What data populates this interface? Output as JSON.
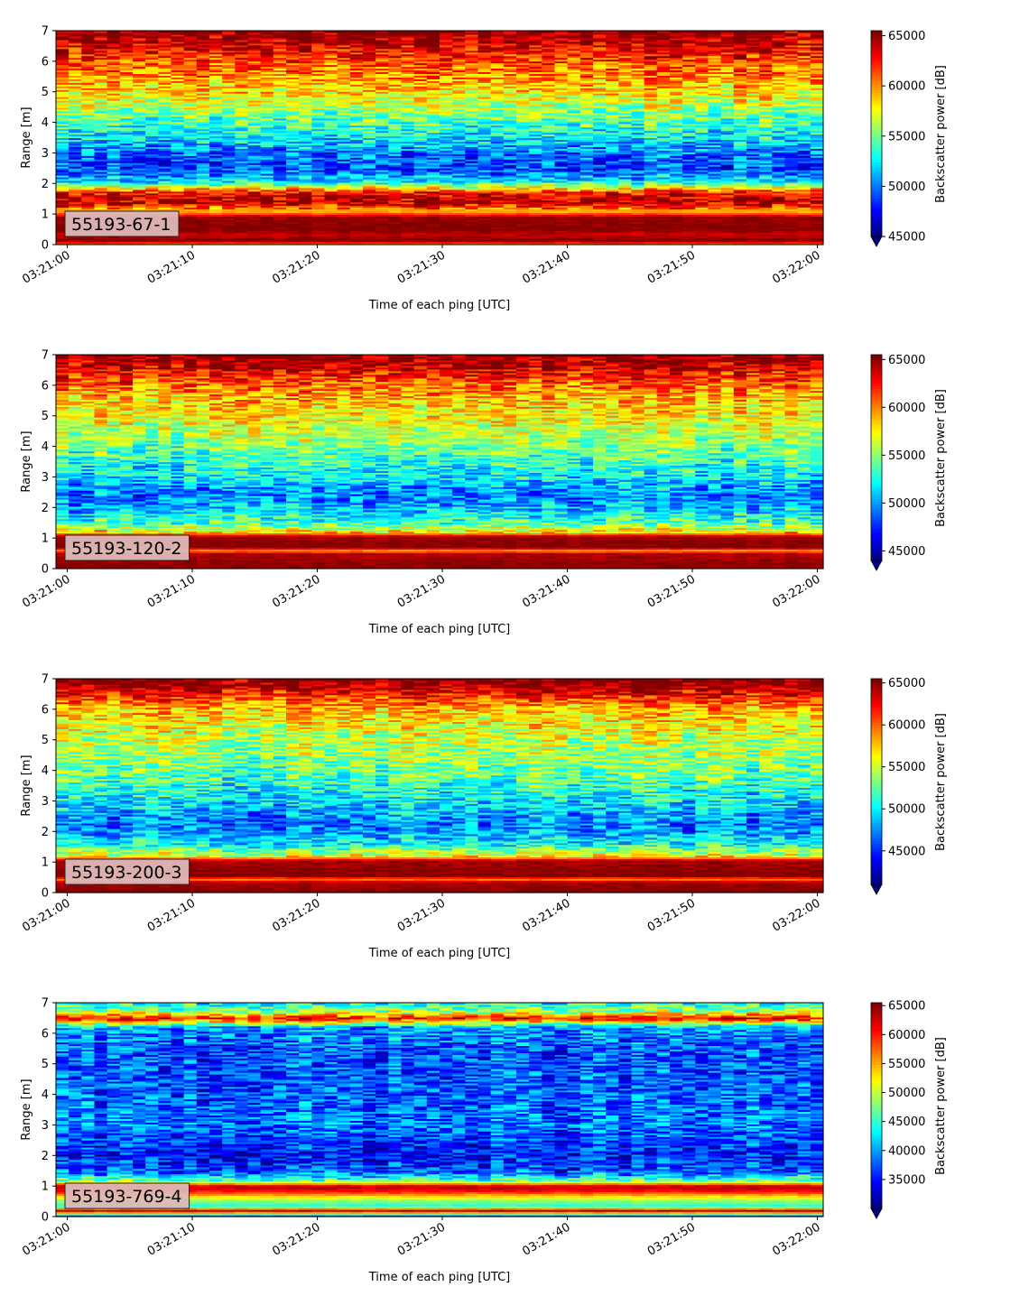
{
  "chart_data": [
    {
      "type": "heatmap",
      "label_box": "55193-67-1",
      "xlabel": "Time of each ping [UTC]",
      "ylabel": "Range [m]",
      "ylim": [
        0,
        7
      ],
      "yticks": [
        "0",
        "1",
        "2",
        "3",
        "4",
        "5",
        "6",
        "7"
      ],
      "xticks": [
        "03:21:00",
        "03:21:10",
        "03:21:20",
        "03:21:30",
        "03:21:40",
        "03:21:50",
        "03:22:00"
      ],
      "colorbar": {
        "label": "Backscatter power [dB]",
        "colormap": "jet",
        "range": [
          45000,
          65500
        ],
        "ticks": [
          "45000",
          "50000",
          "55000",
          "60000",
          "65000"
        ],
        "extend": "min"
      },
      "profile": [
        {
          "range": 0.0,
          "value": 60000
        },
        {
          "range": 0.15,
          "value": 65500
        },
        {
          "range": 0.35,
          "value": 64000
        },
        {
          "range": 0.5,
          "value": 65500
        },
        {
          "range": 0.9,
          "value": 65000
        },
        {
          "range": 1.1,
          "value": 59000
        },
        {
          "range": 1.4,
          "value": 64500
        },
        {
          "range": 1.7,
          "value": 63000
        },
        {
          "range": 1.9,
          "value": 57000
        },
        {
          "range": 2.1,
          "value": 52000
        },
        {
          "range": 2.5,
          "value": 49000
        },
        {
          "range": 2.9,
          "value": 49500
        },
        {
          "range": 3.3,
          "value": 51500
        },
        {
          "range": 4.0,
          "value": 54000
        },
        {
          "range": 5.0,
          "value": 58500
        },
        {
          "range": 6.0,
          "value": 61500
        },
        {
          "range": 6.7,
          "value": 64500
        },
        {
          "range": 7.0,
          "value": 65500
        }
      ]
    },
    {
      "type": "heatmap",
      "label_box": "55193-120-2",
      "xlabel": "Time of each ping [UTC]",
      "ylabel": "Range [m]",
      "ylim": [
        0,
        7
      ],
      "yticks": [
        "0",
        "1",
        "2",
        "3",
        "4",
        "5",
        "6",
        "7"
      ],
      "xticks": [
        "03:21:00",
        "03:21:10",
        "03:21:20",
        "03:21:30",
        "03:21:40",
        "03:21:50",
        "03:22:00"
      ],
      "colorbar": {
        "label": "Backscatter power [dB]",
        "colormap": "jet",
        "range": [
          44000,
          65500
        ],
        "ticks": [
          "45000",
          "50000",
          "55000",
          "60000",
          "65000"
        ],
        "extend": "min"
      },
      "profile": [
        {
          "range": 0.0,
          "value": 65500
        },
        {
          "range": 0.5,
          "value": 64500
        },
        {
          "range": 0.6,
          "value": 59000
        },
        {
          "range": 0.7,
          "value": 65500
        },
        {
          "range": 1.05,
          "value": 65000
        },
        {
          "range": 1.2,
          "value": 58000
        },
        {
          "range": 1.5,
          "value": 53500
        },
        {
          "range": 1.9,
          "value": 51000
        },
        {
          "range": 2.4,
          "value": 49000
        },
        {
          "range": 3.0,
          "value": 51500
        },
        {
          "range": 3.5,
          "value": 53000
        },
        {
          "range": 4.5,
          "value": 56000
        },
        {
          "range": 5.5,
          "value": 58500
        },
        {
          "range": 6.2,
          "value": 61500
        },
        {
          "range": 6.7,
          "value": 64500
        },
        {
          "range": 7.0,
          "value": 65500
        }
      ]
    },
    {
      "type": "heatmap",
      "label_box": "55193-200-3",
      "xlabel": "Time of each ping [UTC]",
      "ylabel": "Range [m]",
      "ylim": [
        0,
        7
      ],
      "yticks": [
        "0",
        "1",
        "2",
        "3",
        "4",
        "5",
        "6",
        "7"
      ],
      "xticks": [
        "03:21:00",
        "03:21:10",
        "03:21:20",
        "03:21:30",
        "03:21:40",
        "03:21:50",
        "03:22:00"
      ],
      "colorbar": {
        "label": "Backscatter power [dB]",
        "colormap": "jet",
        "range": [
          41000,
          65500
        ],
        "ticks": [
          "45000",
          "50000",
          "55000",
          "60000",
          "65000"
        ],
        "extend": "min"
      },
      "profile": [
        {
          "range": 0.0,
          "value": 65500
        },
        {
          "range": 0.35,
          "value": 64500
        },
        {
          "range": 0.45,
          "value": 59000
        },
        {
          "range": 0.55,
          "value": 65500
        },
        {
          "range": 1.05,
          "value": 64500
        },
        {
          "range": 1.2,
          "value": 56000
        },
        {
          "range": 1.6,
          "value": 50000
        },
        {
          "range": 2.2,
          "value": 46500
        },
        {
          "range": 3.0,
          "value": 49500
        },
        {
          "range": 4.0,
          "value": 52500
        },
        {
          "range": 5.0,
          "value": 54500
        },
        {
          "range": 6.0,
          "value": 57500
        },
        {
          "range": 6.5,
          "value": 62000
        },
        {
          "range": 6.9,
          "value": 65500
        },
        {
          "range": 7.0,
          "value": 65500
        }
      ]
    },
    {
      "type": "heatmap",
      "label_box": "55193-769-4",
      "xlabel": "Time of each ping [UTC]",
      "ylabel": "Range [m]",
      "ylim": [
        0,
        7
      ],
      "yticks": [
        "0",
        "1",
        "2",
        "3",
        "4",
        "5",
        "6",
        "7"
      ],
      "xticks": [
        "03:21:00",
        "03:21:10",
        "03:21:20",
        "03:21:30",
        "03:21:40",
        "03:21:50",
        "03:22:00"
      ],
      "colorbar": {
        "label": "Backscatter power [dB]",
        "colormap": "jet",
        "range": [
          30000,
          65500
        ],
        "ticks": [
          "35000",
          "40000",
          "45000",
          "50000",
          "55000",
          "60000",
          "65000"
        ],
        "extend": "min"
      },
      "profile": [
        {
          "range": 0.0,
          "value": 33000
        },
        {
          "range": 0.2,
          "value": 64500
        },
        {
          "range": 0.35,
          "value": 44000
        },
        {
          "range": 0.6,
          "value": 50000
        },
        {
          "range": 0.85,
          "value": 61000
        },
        {
          "range": 1.0,
          "value": 63500
        },
        {
          "range": 1.2,
          "value": 46000
        },
        {
          "range": 1.5,
          "value": 37000
        },
        {
          "range": 2.0,
          "value": 34500
        },
        {
          "range": 3.0,
          "value": 38500
        },
        {
          "range": 4.0,
          "value": 37500
        },
        {
          "range": 5.5,
          "value": 37000
        },
        {
          "range": 6.2,
          "value": 40000
        },
        {
          "range": 6.5,
          "value": 61000
        },
        {
          "range": 6.75,
          "value": 48000
        },
        {
          "range": 7.0,
          "value": 44000
        }
      ]
    }
  ]
}
